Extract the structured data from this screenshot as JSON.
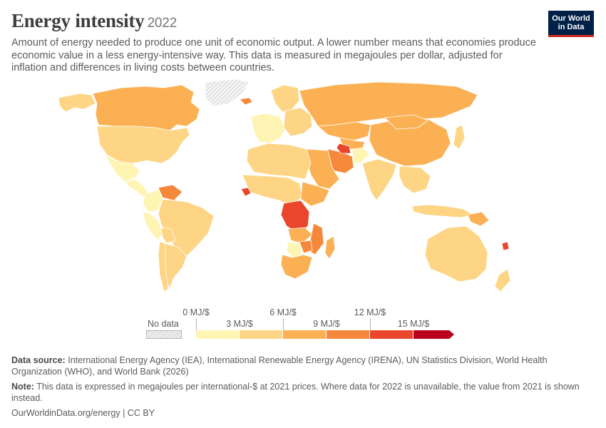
{
  "header": {
    "title": "Energy intensity",
    "year": "2022",
    "subtitle": "Amount of energy needed to produce one unit of economic output. A lower number means that economies produce economic value in a less energy-intensive way. This data is measured in megajoules per dollar, adjusted for inflation and differences in living costs between countries."
  },
  "logo": {
    "line1": "Our World",
    "line2": "in Data"
  },
  "colors": {
    "bin1": "#fef5b5",
    "bin2": "#fdd585",
    "bin3": "#fbb054",
    "bin4": "#f6883c",
    "bin5": "#e9462b",
    "bin6": "#b9001c",
    "no_data": "#e6e6e6",
    "border": "#ffffff"
  },
  "legend": {
    "no_data_label": "No data",
    "tick_labels_top": [
      "0 MJ/$",
      "6 MJ/$",
      "12 MJ/$"
    ],
    "tick_labels_bottom": [
      "3 MJ/$",
      "9 MJ/$",
      "15 MJ/$"
    ],
    "bins": [
      {
        "min": 0,
        "max": 3,
        "color_key": "bin1"
      },
      {
        "min": 3,
        "max": 6,
        "color_key": "bin2"
      },
      {
        "min": 6,
        "max": 9,
        "color_key": "bin3"
      },
      {
        "min": 9,
        "max": 12,
        "color_key": "bin4"
      },
      {
        "min": 12,
        "max": 15,
        "color_key": "bin5"
      },
      {
        "min": 15,
        "max": null,
        "color_key": "bin6"
      }
    ]
  },
  "regions": [
    {
      "name": "canada",
      "bin": "bin3"
    },
    {
      "name": "alaska",
      "bin": "bin2"
    },
    {
      "name": "united-states",
      "bin": "bin2"
    },
    {
      "name": "mexico",
      "bin": "bin1"
    },
    {
      "name": "central-america",
      "bin": "bin1"
    },
    {
      "name": "greenland",
      "bin": "no_data"
    },
    {
      "name": "iceland",
      "bin": "bin4"
    },
    {
      "name": "venezuela",
      "bin": "bin4"
    },
    {
      "name": "colombia",
      "bin": "bin1"
    },
    {
      "name": "peru",
      "bin": "bin1"
    },
    {
      "name": "brazil",
      "bin": "bin2"
    },
    {
      "name": "bolivia",
      "bin": "bin2"
    },
    {
      "name": "argentina",
      "bin": "bin2"
    },
    {
      "name": "chile",
      "bin": "bin2"
    },
    {
      "name": "western-europe",
      "bin": "bin1"
    },
    {
      "name": "scandinavia",
      "bin": "bin2"
    },
    {
      "name": "eastern-europe",
      "bin": "bin2"
    },
    {
      "name": "russia",
      "bin": "bin3"
    },
    {
      "name": "kazakhstan",
      "bin": "bin3"
    },
    {
      "name": "central-asia",
      "bin": "bin3"
    },
    {
      "name": "iran",
      "bin": "bin4"
    },
    {
      "name": "turkmenistan",
      "bin": "bin5"
    },
    {
      "name": "middle-east",
      "bin": "bin3"
    },
    {
      "name": "afghanistan",
      "bin": "bin1"
    },
    {
      "name": "north-africa",
      "bin": "bin2"
    },
    {
      "name": "west-africa",
      "bin": "bin2"
    },
    {
      "name": "sierra-leone",
      "bin": "bin5"
    },
    {
      "name": "ethiopia",
      "bin": "bin3"
    },
    {
      "name": "dr-congo",
      "bin": "bin5"
    },
    {
      "name": "zambia",
      "bin": "bin3"
    },
    {
      "name": "mozambique",
      "bin": "bin4"
    },
    {
      "name": "zimbabwe",
      "bin": "bin4"
    },
    {
      "name": "botswana",
      "bin": "bin1"
    },
    {
      "name": "south-africa",
      "bin": "bin3"
    },
    {
      "name": "madagascar",
      "bin": "bin3"
    },
    {
      "name": "india",
      "bin": "bin2"
    },
    {
      "name": "china",
      "bin": "bin3"
    },
    {
      "name": "mongolia",
      "bin": "bin3"
    },
    {
      "name": "south-east-asia",
      "bin": "bin2"
    },
    {
      "name": "japan",
      "bin": "bin2"
    },
    {
      "name": "indonesia",
      "bin": "bin2"
    },
    {
      "name": "papua-new-guinea",
      "bin": "bin3"
    },
    {
      "name": "australia",
      "bin": "bin2"
    },
    {
      "name": "new-zealand",
      "bin": "bin2"
    },
    {
      "name": "pacific-islands",
      "bin": "bin5"
    }
  ],
  "footer": {
    "source_label": "Data source:",
    "source_text": "International Energy Agency (IEA), International Renewable Energy Agency (IRENA), UN Statistics Division, World Health Organization (WHO), and World Bank (2026)",
    "note_label": "Note:",
    "note_text": "This data is expressed in megajoules per international-$ at 2021 prices. Where data for 2022 is unavailable, the value from 2021 is shown instead.",
    "url": "OurWorldinData.org/energy | CC BY"
  }
}
